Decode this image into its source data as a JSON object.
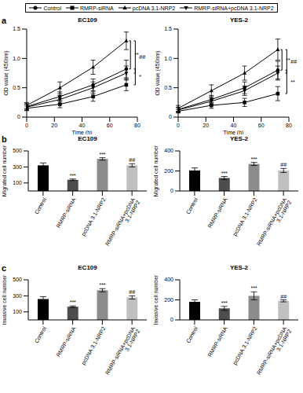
{
  "chart_data": [
    {
      "type": "line",
      "panel": "a",
      "title": "EC109",
      "x_label": "Time (h)",
      "y_label": "OD value (450nm)",
      "legend": "top",
      "x": [
        0,
        24,
        48,
        72
      ],
      "xlim": [
        0,
        80
      ],
      "xticks": [
        0,
        20,
        40,
        60,
        80
      ],
      "ylim": [
        0,
        1.5
      ],
      "yticks": [
        0,
        0.5,
        {
          "value": 1,
          "label": "1.0"
        },
        1.5
      ],
      "series": [
        {
          "name": "Control",
          "color": "#000000",
          "marker": "circle",
          "values": [
            0.18,
            0.35,
            0.55,
            0.82
          ],
          "errors": [
            0.05,
            0.08,
            0.1,
            0.15
          ]
        },
        {
          "name": "RMRP-siRNA",
          "color": "#000000",
          "marker": "square",
          "values": [
            0.15,
            0.22,
            0.35,
            0.55
          ],
          "errors": [
            0.04,
            0.06,
            0.08,
            0.1
          ]
        },
        {
          "name": "pcDNA 3.1-NRP2",
          "color": "#000000",
          "marker": "triangle-up",
          "values": [
            0.2,
            0.5,
            0.85,
            1.3
          ],
          "errors": [
            0.05,
            0.1,
            0.12,
            0.15
          ]
        },
        {
          "name": "RMRP-siRNA+pcDNA 3.1-NRP2",
          "color": "#000000",
          "marker": "triangle-down",
          "values": [
            0.17,
            0.3,
            0.5,
            0.75
          ],
          "errors": [
            0.05,
            0.07,
            0.1,
            0.12
          ]
        }
      ],
      "annotations": [
        {
          "text": "**",
          "from": "pcDNA 3.1-NRP2",
          "to": "Control"
        },
        {
          "text": "##",
          "from": "pcDNA 3.1-NRP2",
          "to": "RMRP-siRNA+pcDNA 3.1-NRP2"
        },
        {
          "text": "*",
          "from": "Control",
          "to": "RMRP-siRNA"
        }
      ]
    },
    {
      "type": "line",
      "title": "YES-2",
      "x_label": "Time (h)",
      "y_label": "OD value (450nm)",
      "x": [
        0,
        24,
        48,
        72
      ],
      "xlim": [
        0,
        80
      ],
      "xticks": [
        0,
        20,
        40,
        60,
        80
      ],
      "ylim": [
        0,
        1.5
      ],
      "yticks": [
        0,
        0.5,
        {
          "value": 1,
          "label": "1.0"
        },
        1.5
      ],
      "series": [
        {
          "name": "Control",
          "color": "#000000",
          "marker": "circle",
          "values": [
            0.13,
            0.3,
            0.5,
            0.8
          ],
          "errors": [
            0.04,
            0.07,
            0.1,
            0.15
          ]
        },
        {
          "name": "RMRP-siRNA",
          "color": "#000000",
          "marker": "square",
          "values": [
            0.1,
            0.2,
            0.25,
            0.4
          ],
          "errors": [
            0.03,
            0.05,
            0.07,
            0.12
          ]
        },
        {
          "name": "pcDNA 3.1-NRP2",
          "color": "#000000",
          "marker": "triangle-up",
          "values": [
            0.15,
            0.45,
            0.75,
            1.15
          ],
          "errors": [
            0.05,
            0.1,
            0.12,
            0.18
          ]
        },
        {
          "name": "RMRP-siRNA+pcDNA 3.1-NRP2",
          "color": "#000000",
          "marker": "triangle-down",
          "values": [
            0.12,
            0.27,
            0.45,
            0.75
          ],
          "errors": [
            0.04,
            0.06,
            0.08,
            0.12
          ]
        }
      ],
      "annotations": [
        {
          "text": "**",
          "from": "pcDNA 3.1-NRP2",
          "to": "Control"
        },
        {
          "text": "##",
          "from": "pcDNA 3.1-NRP2",
          "to": "RMRP-siRNA+pcDNA 3.1-NRP2"
        },
        {
          "text": "**",
          "from": "Control",
          "to": "RMRP-siRNA"
        }
      ]
    },
    {
      "type": "bar",
      "panel": "b",
      "title": "EC109",
      "y_label": "Migrated cell number",
      "categories": [
        "Control",
        "RMRP-siRNA",
        "pcDNA 3.1-NRP2",
        "RMRP-siRNA+pcDNA 3.1-NRP2"
      ],
      "values": [
        320,
        140,
        400,
        320
      ],
      "errors": [
        30,
        10,
        15,
        20
      ],
      "colors": [
        "#000000",
        "#4d4d4d",
        "#8c8c8c",
        "#c0c0c0"
      ],
      "significance": [
        null,
        "***",
        "***",
        "##"
      ],
      "ylim": [
        0,
        500
      ],
      "yticks": [
        0,
        100,
        200,
        300,
        400,
        500
      ]
    },
    {
      "type": "bar",
      "title": "YES-2",
      "y_label": "Migrated cell number",
      "categories": [
        "Control",
        "RMRP-siRNA",
        "pcDNA 3.1-NRP2",
        "RMRP-siRNA+pcDNA 3.1-NRP2"
      ],
      "values": [
        205,
        130,
        270,
        205
      ],
      "errors": [
        25,
        15,
        15,
        20
      ],
      "colors": [
        "#000000",
        "#4d4d4d",
        "#8c8c8c",
        "#c0c0c0"
      ],
      "significance": [
        null,
        "***",
        "***",
        "##"
      ],
      "ylim": [
        0,
        400
      ],
      "yticks": [
        0,
        100,
        200,
        300,
        400
      ]
    },
    {
      "type": "bar",
      "panel": "c",
      "title": "EC109",
      "y_label": "Invasive cell number",
      "categories": [
        "Control",
        "RMRP-siRNA",
        "pcDNA 3.1-NRP2",
        "RMRP-siRNA+pcDNA 3.1-NRP2"
      ],
      "values": [
        260,
        165,
        370,
        280
      ],
      "errors": [
        30,
        10,
        20,
        20
      ],
      "colors": [
        "#000000",
        "#4d4d4d",
        "#8c8c8c",
        "#c0c0c0"
      ],
      "significance": [
        null,
        "***",
        "***",
        "##"
      ],
      "ylim": [
        0,
        500
      ],
      "yticks": [
        0,
        100,
        200,
        300,
        400,
        500
      ]
    },
    {
      "type": "bar",
      "title": "YES-2",
      "y_label": "Invasive cell number",
      "categories": [
        "Control",
        "RMRP-siRNA",
        "pcDNA 3.1-NRP2",
        "RMRP-siRNA+pcDNA 3.1-NRP2"
      ],
      "values": [
        180,
        115,
        240,
        190
      ],
      "errors": [
        20,
        20,
        40,
        10
      ],
      "colors": [
        "#000000",
        "#4d4d4d",
        "#8c8c8c",
        "#c0c0c0"
      ],
      "significance": [
        null,
        "***",
        "***",
        "##"
      ],
      "ylim": [
        0,
        400
      ],
      "yticks": [
        0,
        100,
        200,
        300,
        400
      ]
    }
  ]
}
